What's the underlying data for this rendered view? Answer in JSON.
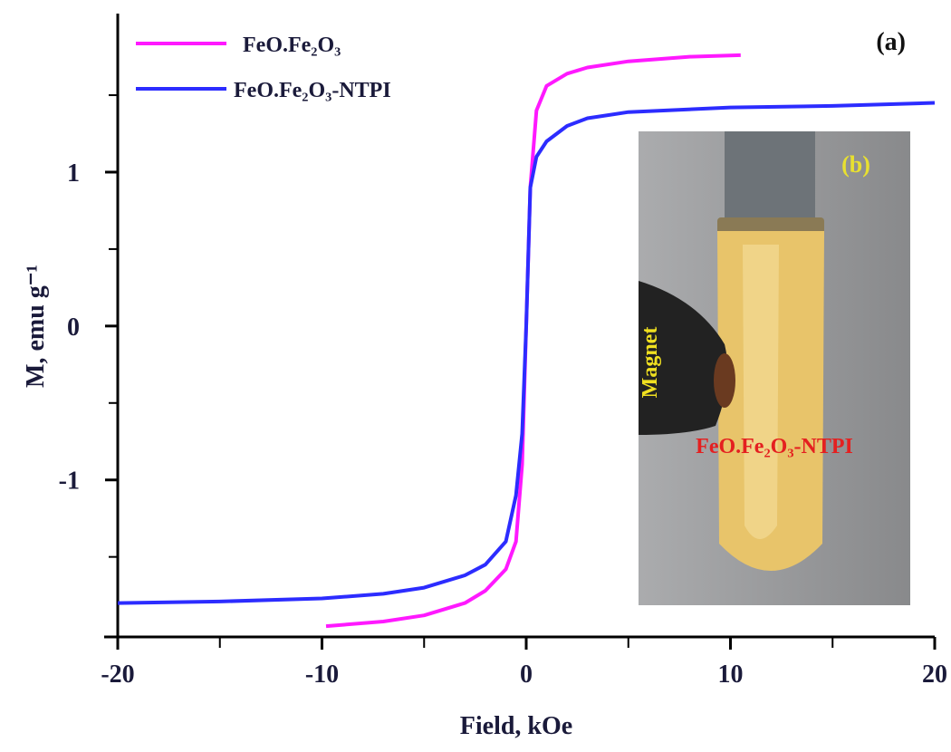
{
  "chart_data": {
    "type": "line",
    "xlabel": "Field, kOe",
    "ylabel": "M, emu g⁻¹",
    "annotations": [
      "(a)",
      "(b)",
      "Magnet",
      "FeO.Fe₂O₃-NTPI"
    ],
    "xlim": [
      -20,
      20
    ],
    "xticks": [
      -20,
      -10,
      0,
      10,
      20
    ],
    "minor_xticks": [
      -15,
      -5,
      5,
      15
    ],
    "ylim": [
      -2.02,
      2.03
    ],
    "yticks": [
      -1,
      0,
      1
    ],
    "minor_yticks": [
      -1.5,
      -0.5,
      0.5,
      1.5
    ],
    "legend": "upper left",
    "series": [
      {
        "name": "FeO.Fe₂O₃",
        "color": "#ff19ff",
        "x": [
          -9.8,
          -7,
          -5,
          -3,
          -2,
          -1,
          -0.5,
          -0.2,
          0,
          0.2,
          0.5,
          1,
          2,
          3,
          5,
          8,
          10.5
        ],
        "values": [
          -1.95,
          -1.92,
          -1.88,
          -1.8,
          -1.72,
          -1.58,
          -1.4,
          -0.9,
          0,
          0.9,
          1.4,
          1.56,
          1.64,
          1.68,
          1.72,
          1.75,
          1.76
        ]
      },
      {
        "name": "FeO.Fe₂O₃-NTPI",
        "color": "#2c2cff",
        "x": [
          -20,
          -15,
          -10,
          -7,
          -5,
          -3,
          -2,
          -1,
          -0.5,
          -0.2,
          0,
          0.2,
          0.5,
          1,
          2,
          3,
          5,
          10,
          15,
          20
        ],
        "values": [
          -1.8,
          -1.79,
          -1.77,
          -1.74,
          -1.7,
          -1.62,
          -1.55,
          -1.4,
          -1.1,
          -0.7,
          0,
          0.9,
          1.1,
          1.2,
          1.3,
          1.35,
          1.39,
          1.42,
          1.43,
          1.45
        ]
      }
    ]
  }
}
